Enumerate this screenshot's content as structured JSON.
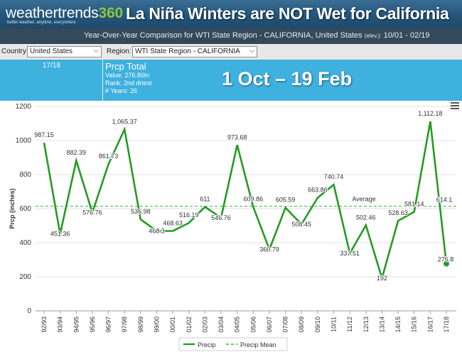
{
  "header": {
    "logo_main": "weathertrends",
    "logo_num": "360",
    "logo_tagline": "better weather, anytime, everywhere",
    "headline": "La Niña Winters are NOT Wet for California"
  },
  "subbar": {
    "text": "Year-Over-Year Comparison for WTI State Region - CALIFORNIA, United States",
    "elev": "(elev.):",
    "dates": "10/01 - 02/19"
  },
  "filters": {
    "country_label": "Country:",
    "country_value": "United States",
    "region_label": "Region:",
    "region_value": "WTI State Region - CALIFORNIA"
  },
  "panel": {
    "season": "17/18",
    "title": "Prcp Total",
    "value_line": "Value: 276.80in",
    "rank_line": "Rank: 2nd driest",
    "years_line": "# Years: 26",
    "range": "1 Oct – 19 Feb"
  },
  "colors": {
    "line": "#249b24",
    "mean": "#3fae3f",
    "grid": "#e2e2e2",
    "header_bg": "#24557a",
    "panel_bg": "#3eb1df"
  },
  "chart_data": {
    "type": "line",
    "x": [
      "92/93",
      "93/94",
      "94/95",
      "95/96",
      "96/97",
      "97/98",
      "98/99",
      "99/00",
      "00/01",
      "01/02",
      "02/03",
      "03/04",
      "04/05",
      "05/06",
      "06/07",
      "07/08",
      "08/09",
      "09/10",
      "10/11",
      "11/12",
      "12/13",
      "13/14",
      "14/15",
      "15/16",
      "16/17",
      "17/18"
    ],
    "series": [
      {
        "name": "Precip",
        "values": [
          987.15,
          451.36,
          882.39,
          576.76,
          861.73,
          1065.37,
          536.98,
          468.3,
          468.63,
          516.19,
          611,
          546.76,
          973.68,
          609.86,
          360.79,
          605.59,
          508.45,
          663.86,
          740.74,
          337.51,
          502.46,
          192,
          528.63,
          581.14,
          1112.18,
          276.8
        ]
      },
      {
        "name": "Precip Mean",
        "value": 614.1
      }
    ],
    "labels": [
      "987.15",
      "451.36",
      "882.39",
      "576.76",
      "861.73",
      "1,065.37",
      "536.98",
      "468.3",
      "468.63",
      "516.19",
      "611",
      "546.76",
      "973.68",
      "609.86",
      "360.79",
      "605.59",
      "508.45",
      "663.86",
      "740.74",
      "337.51",
      "502.46",
      "192",
      "528.63",
      "581.14",
      "1,112.18",
      "276.8"
    ],
    "mean_label": "Average",
    "mean_value_label": "614.1",
    "ylabel": "Prcp (inches)",
    "ylim": [
      0,
      1200
    ],
    "yticks": [
      0,
      200,
      400,
      600,
      800,
      1000,
      1200
    ],
    "legend": [
      "Precip",
      "Precip Mean"
    ],
    "grid": true
  }
}
